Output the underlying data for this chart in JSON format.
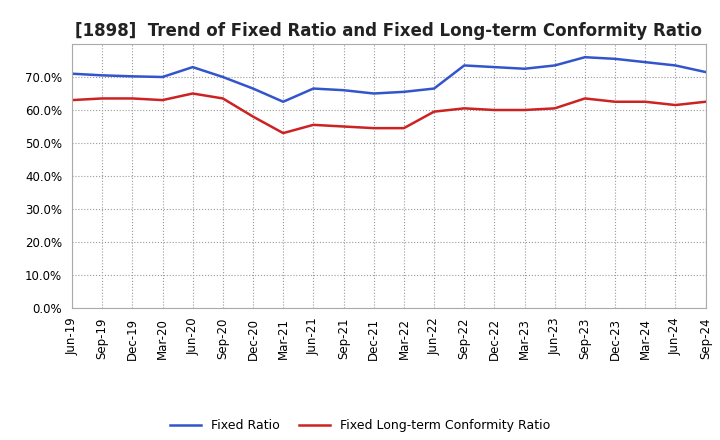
{
  "title": "[1898]  Trend of Fixed Ratio and Fixed Long-term Conformity Ratio",
  "x_labels": [
    "Jun-19",
    "Sep-19",
    "Dec-19",
    "Mar-20",
    "Jun-20",
    "Sep-20",
    "Dec-20",
    "Mar-21",
    "Jun-21",
    "Sep-21",
    "Dec-21",
    "Mar-22",
    "Jun-22",
    "Sep-22",
    "Dec-22",
    "Mar-23",
    "Jun-23",
    "Sep-23",
    "Dec-23",
    "Mar-24",
    "Jun-24",
    "Sep-24"
  ],
  "fixed_ratio": [
    71.0,
    70.5,
    70.2,
    70.0,
    73.0,
    70.0,
    66.5,
    62.5,
    66.5,
    66.0,
    65.0,
    65.5,
    66.5,
    73.5,
    73.0,
    72.5,
    73.5,
    76.0,
    75.5,
    74.5,
    73.5,
    71.5
  ],
  "fixed_lt_ratio": [
    63.0,
    63.5,
    63.5,
    63.0,
    65.0,
    63.5,
    58.0,
    53.0,
    55.5,
    55.0,
    54.5,
    54.5,
    59.5,
    60.5,
    60.0,
    60.0,
    60.5,
    63.5,
    62.5,
    62.5,
    61.5,
    62.5
  ],
  "fixed_ratio_color": "#3355cc",
  "fixed_lt_ratio_color": "#cc2222",
  "background_color": "#ffffff",
  "grid_color": "#999999",
  "ylim": [
    0,
    80
  ],
  "yticks": [
    0,
    10,
    20,
    30,
    40,
    50,
    60,
    70
  ],
  "legend_fixed": "Fixed Ratio",
  "legend_lt": "Fixed Long-term Conformity Ratio",
  "title_fontsize": 12,
  "tick_fontsize": 8.5,
  "legend_fontsize": 9
}
